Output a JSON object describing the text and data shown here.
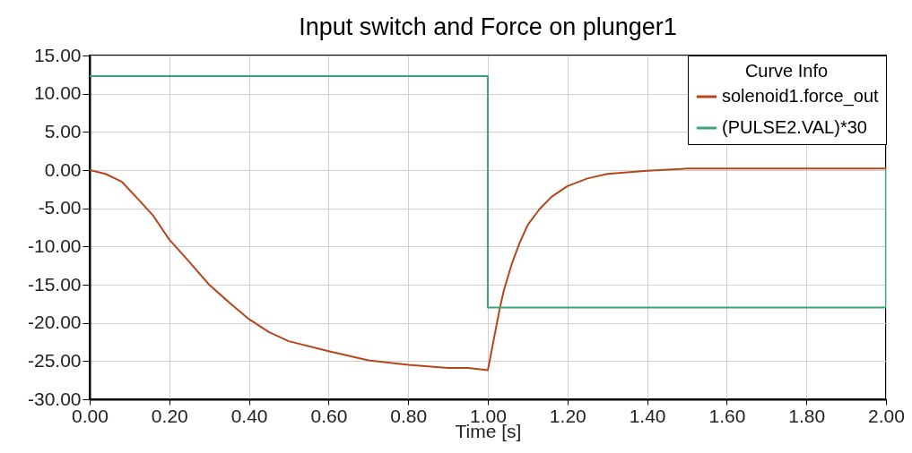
{
  "chart_data": {
    "type": "line",
    "title": "Input switch and Force on plunger1",
    "xlabel": "Time [s]",
    "legend_title": "Curve Info",
    "series": [
      {
        "name": "solenoid1.force_out",
        "color": "#b5461c",
        "x": [
          0,
          0.04,
          0.08,
          0.12,
          0.16,
          0.2,
          0.25,
          0.3,
          0.35,
          0.4,
          0.45,
          0.5,
          0.6,
          0.7,
          0.8,
          0.9,
          0.95,
          1.0,
          1.01,
          1.02,
          1.03,
          1.04,
          1.06,
          1.08,
          1.1,
          1.13,
          1.16,
          1.2,
          1.25,
          1.3,
          1.4,
          1.5,
          2.0
        ],
        "values": [
          0,
          -0.5,
          -1.5,
          -3.7,
          -6,
          -9.1,
          -12,
          -15,
          -17.3,
          -19.5,
          -21.2,
          -22.4,
          -23.7,
          -24.9,
          -25.5,
          -25.9,
          -25.9,
          -26.2,
          -23.5,
          -20.8,
          -18.1,
          -15.8,
          -12.3,
          -9.5,
          -7.2,
          -5.1,
          -3.5,
          -2.1,
          -1.1,
          -0.5,
          -0.1,
          0.2,
          0.2
        ]
      },
      {
        "name": "(PULSE2.VAL)*30",
        "color": "#3aa676",
        "x": [
          0,
          1.0,
          1.0,
          2.0,
          2.0
        ],
        "values": [
          12.3,
          12.3,
          -18,
          -18,
          0.2
        ]
      }
    ],
    "xlim": [
      0,
      2
    ],
    "xticks": [
      {
        "value": 0,
        "label": "0.00"
      },
      {
        "value": 0.2,
        "label": "0.20"
      },
      {
        "value": 0.4,
        "label": "0.40"
      },
      {
        "value": 0.6,
        "label": "0.60"
      },
      {
        "value": 0.8,
        "label": "0.80"
      },
      {
        "value": 1,
        "label": "1.00"
      },
      {
        "value": 1.2,
        "label": "1.20"
      },
      {
        "value": 1.4,
        "label": "1.40"
      },
      {
        "value": 1.6,
        "label": "1.60"
      },
      {
        "value": 1.8,
        "label": "1.80"
      },
      {
        "value": 2,
        "label": "2.00"
      }
    ],
    "ylim": [
      -30,
      15
    ],
    "yticks": [
      {
        "value": -30,
        "label": "-30.00"
      },
      {
        "value": -25,
        "label": "-25.00"
      },
      {
        "value": -20,
        "label": "-20.00"
      },
      {
        "value": -15,
        "label": "-15.00"
      },
      {
        "value": -10,
        "label": "-10.00"
      },
      {
        "value": -5,
        "label": "-5.00"
      },
      {
        "value": 0,
        "label": "0.00"
      },
      {
        "value": 5,
        "label": "5.00"
      },
      {
        "value": 10,
        "label": "10.00"
      },
      {
        "value": 15,
        "label": "15.00"
      }
    ],
    "grid": true,
    "legend": "top right",
    "marker": "none",
    "line_style": "solid"
  }
}
